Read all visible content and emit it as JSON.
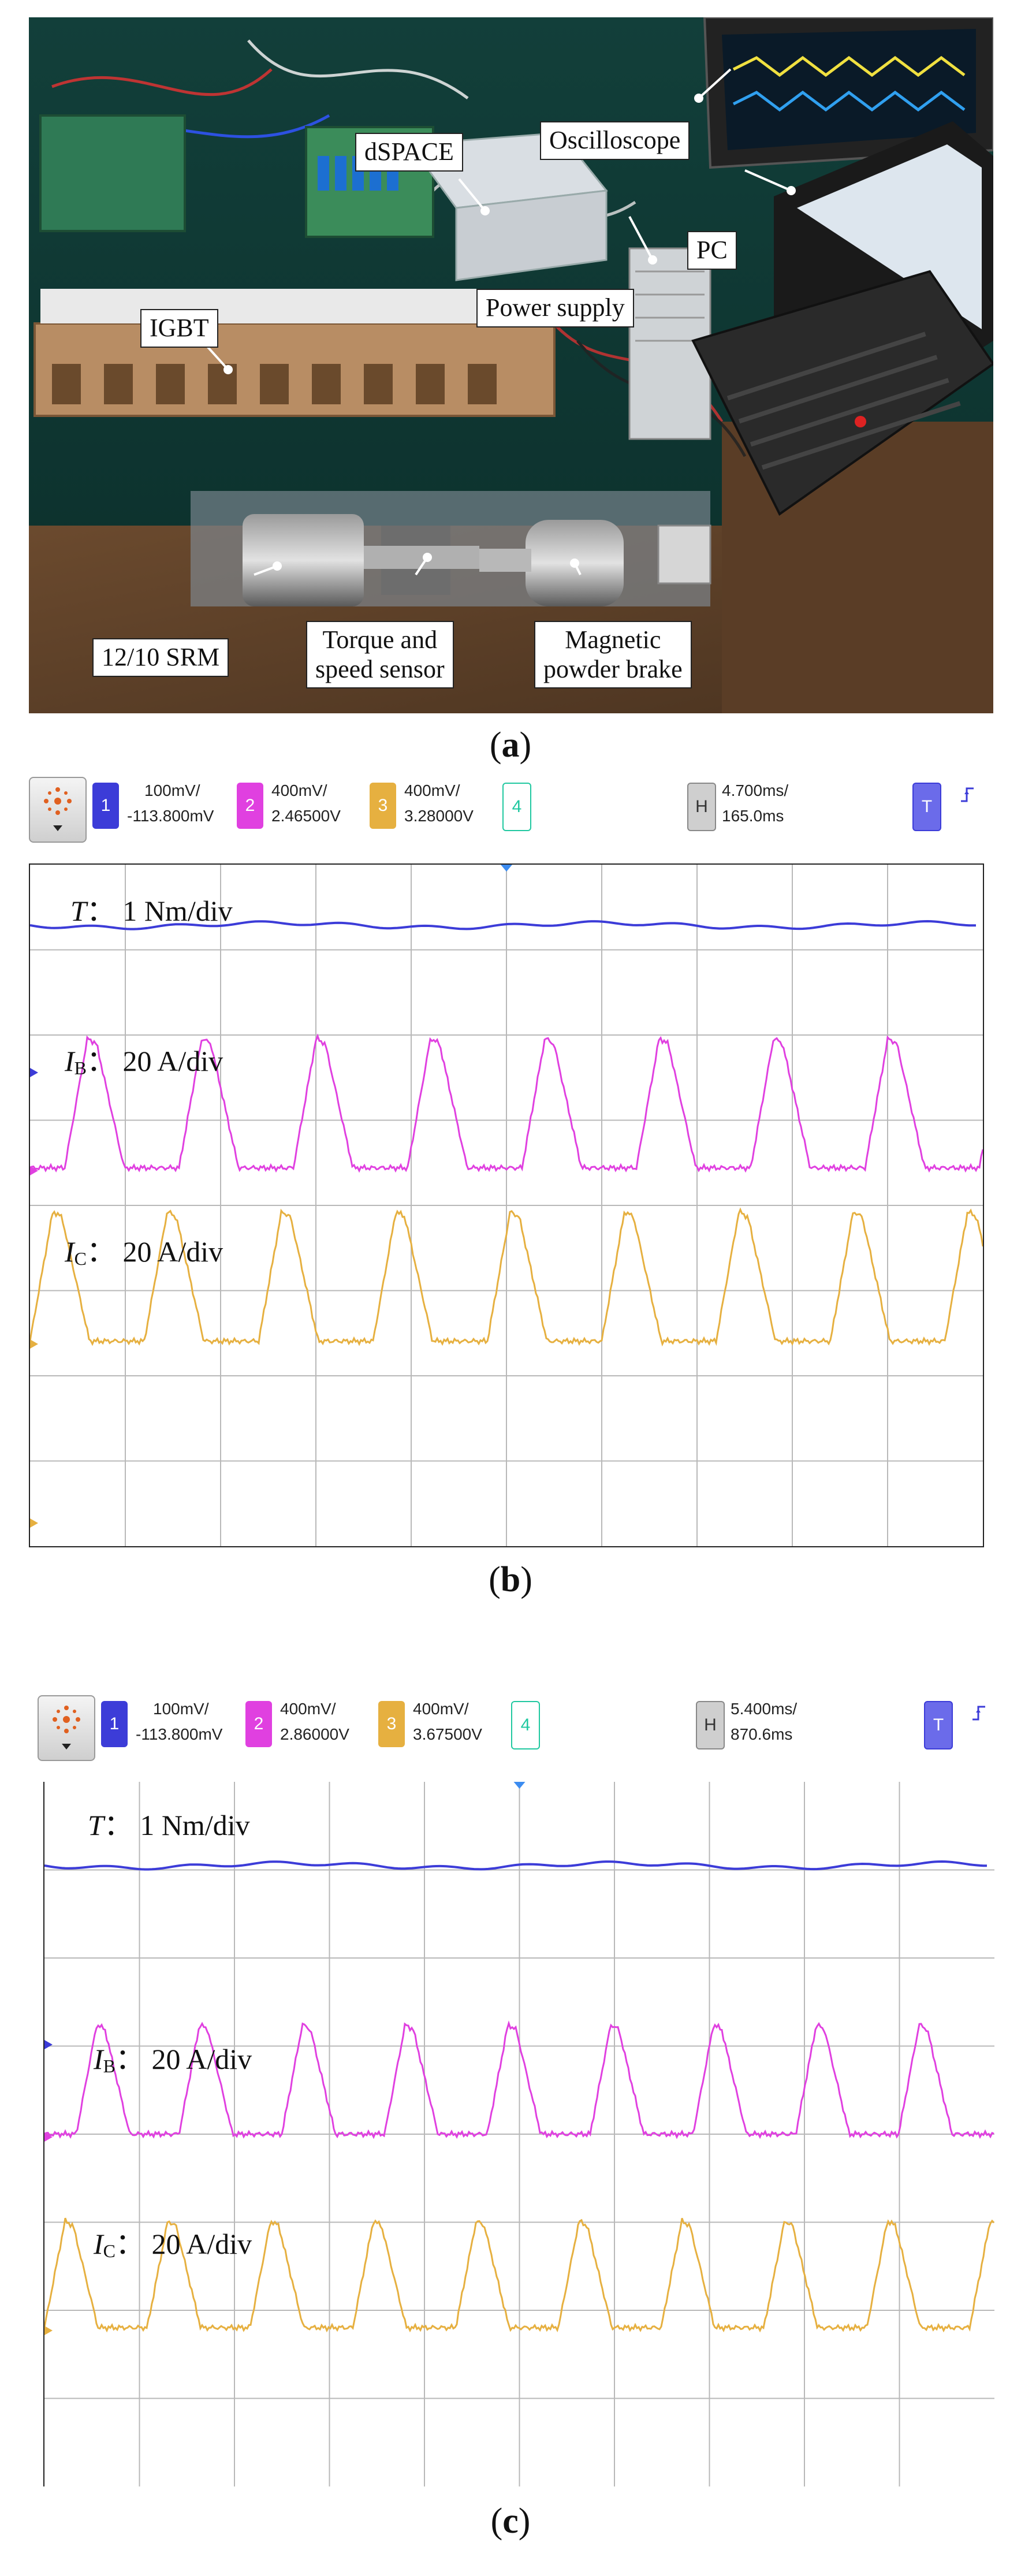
{
  "figure": {
    "caption_a": "a",
    "caption_b": "b",
    "caption_c": "c"
  },
  "photo_labels": {
    "dspace": "dSPACE",
    "oscilloscope": "Oscilloscope",
    "pc": "PC",
    "power_supply": "Power supply",
    "igbt": "IGBT",
    "srm": "12/10 SRM",
    "torque_sensor_line1": "Torque and",
    "torque_sensor_line2": "speed sensor",
    "brake_line1": "Magnetic",
    "brake_line2": "powder brake"
  },
  "scope_b": {
    "ch1_num": "1",
    "ch1_line1": "100mV/",
    "ch1_line2": "-113.800mV",
    "ch2_num": "2",
    "ch2_line1": "400mV/",
    "ch2_line2": "2.46500V",
    "ch3_num": "3",
    "ch3_line1": "400mV/",
    "ch3_line2": "3.28000V",
    "ch4_num": "4",
    "h_label": "H",
    "h_line1": "4.700ms/",
    "h_line2": "165.0ms",
    "t_label": "T",
    "label_T_sym": "T",
    "label_T_val": "1 Nm/div",
    "label_IB_sym": "I",
    "label_IB_sub": "B",
    "label_IB_val": "20 A/div",
    "label_IC_sym": "I",
    "label_IC_sub": "C",
    "label_IC_val": "20 A/div"
  },
  "scope_c": {
    "ch1_num": "1",
    "ch1_line1": "100mV/",
    "ch1_line2": "-113.800mV",
    "ch2_num": "2",
    "ch2_line1": "400mV/",
    "ch2_line2": "2.86000V",
    "ch3_num": "3",
    "ch3_line1": "400mV/",
    "ch3_line2": "3.67500V",
    "ch4_num": "4",
    "h_label": "H",
    "h_line1": "5.400ms/",
    "h_line2": "870.6ms",
    "t_label": "T",
    "label_T_sym": "T",
    "label_T_val": "1 Nm/div",
    "label_IB_sym": "I",
    "label_IB_sub": "B",
    "label_IB_val": "20 A/div",
    "label_IC_sym": "I",
    "label_IC_sub": "C",
    "label_IC_val": "20 A/div"
  },
  "colors": {
    "ch1": "#3c3cd8",
    "ch2": "#e040e0",
    "ch3": "#e6b040",
    "ch4": "#20c8a0",
    "grid": "#b8b8b8"
  },
  "icons": {
    "menu": "scope-menu-icon",
    "trigger": "trigger-edge-icon"
  }
}
